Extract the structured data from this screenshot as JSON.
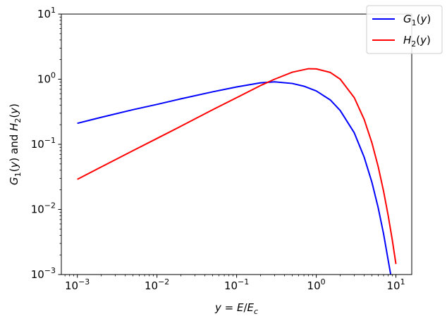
{
  "chart_data": {
    "type": "line",
    "xlabel": {
      "text": "y = E/E",
      "sub": "c",
      "y_italic": "y",
      "e_italic": "E"
    },
    "ylabel": {
      "g": "G",
      "g_sub": "1",
      "mid": "(y) and ",
      "h": "H",
      "h_sub": "2",
      "end": "(y)"
    },
    "x_scale": "log",
    "y_scale": "log",
    "xlim": [
      0.00063,
      15.8
    ],
    "ylim": [
      0.001,
      10
    ],
    "x_ticks": [
      {
        "value": 0.001,
        "base": "10",
        "exp": "−3"
      },
      {
        "value": 0.01,
        "base": "10",
        "exp": "−2"
      },
      {
        "value": 0.1,
        "base": "10",
        "exp": "−1"
      },
      {
        "value": 1,
        "base": "10",
        "exp": "0"
      },
      {
        "value": 10,
        "base": "10",
        "exp": "1"
      }
    ],
    "y_ticks": [
      {
        "value": 0.001,
        "base": "10",
        "exp": "−3"
      },
      {
        "value": 0.01,
        "base": "10",
        "exp": "−2"
      },
      {
        "value": 0.1,
        "base": "10",
        "exp": "−1"
      },
      {
        "value": 1,
        "base": "10",
        "exp": "0"
      },
      {
        "value": 10,
        "base": "10",
        "exp": "1"
      }
    ],
    "grid": false,
    "legend_position": "top-right",
    "series": [
      {
        "name": "G1(y)",
        "label": {
          "main": "G",
          "sub": "1",
          "arg": "(y)"
        },
        "color": "#0000ff",
        "points": [
          [
            0.001,
            0.21
          ],
          [
            0.002,
            0.26
          ],
          [
            0.005,
            0.34
          ],
          [
            0.01,
            0.41
          ],
          [
            0.02,
            0.5
          ],
          [
            0.05,
            0.64
          ],
          [
            0.1,
            0.76
          ],
          [
            0.2,
            0.88
          ],
          [
            0.3,
            0.91
          ],
          [
            0.5,
            0.86
          ],
          [
            0.7,
            0.78
          ],
          [
            1.0,
            0.66
          ],
          [
            1.5,
            0.48
          ],
          [
            2.0,
            0.33
          ],
          [
            3.0,
            0.15
          ],
          [
            4.0,
            0.063
          ],
          [
            5.0,
            0.026
          ],
          [
            6.0,
            0.0105
          ],
          [
            7.0,
            0.0042
          ],
          [
            8.0,
            0.00165
          ],
          [
            8.6,
            0.001
          ]
        ]
      },
      {
        "name": "H2(y)",
        "label": {
          "main": "H",
          "sub": "2",
          "arg": "(y)"
        },
        "color": "#ff0000",
        "points": [
          [
            0.001,
            0.029
          ],
          [
            0.002,
            0.045
          ],
          [
            0.005,
            0.08
          ],
          [
            0.01,
            0.123
          ],
          [
            0.02,
            0.19
          ],
          [
            0.05,
            0.34
          ],
          [
            0.1,
            0.52
          ],
          [
            0.2,
            0.8
          ],
          [
            0.3,
            1.0
          ],
          [
            0.5,
            1.28
          ],
          [
            0.8,
            1.45
          ],
          [
            1.0,
            1.44
          ],
          [
            1.5,
            1.27
          ],
          [
            2.0,
            1.0
          ],
          [
            3.0,
            0.52
          ],
          [
            4.0,
            0.24
          ],
          [
            5.0,
            0.105
          ],
          [
            6.0,
            0.045
          ],
          [
            7.0,
            0.019
          ],
          [
            8.0,
            0.008
          ],
          [
            9.0,
            0.0034
          ],
          [
            10.0,
            0.00145
          ]
        ]
      }
    ]
  }
}
